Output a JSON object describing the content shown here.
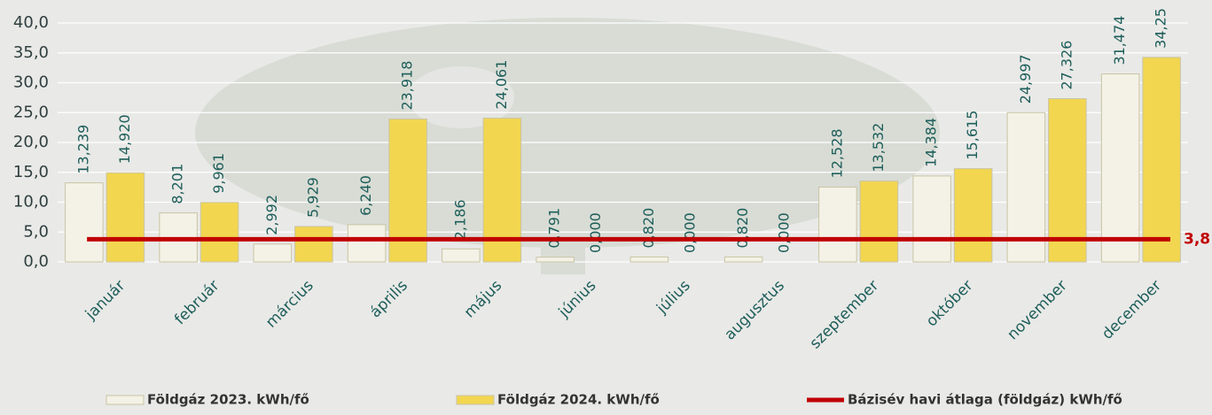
{
  "chart_data": {
    "type": "bar",
    "categories": [
      "január",
      "február",
      "március",
      "április",
      "május",
      "június",
      "július",
      "augusztus",
      "szeptember",
      "október",
      "november",
      "december"
    ],
    "series": [
      {
        "name": "Földgáz 2023. kWh/fő",
        "color": "#f4f2e6",
        "values": [
          13.239,
          8.201,
          2.992,
          6.24,
          2.186,
          0.791,
          0.82,
          0.82,
          12.528,
          14.384,
          24.997,
          31.474
        ],
        "value_labels": [
          "13,239",
          "8,201",
          "2,992",
          "6,240",
          "2,186",
          "0,791",
          "0,820",
          "0,820",
          "12,528",
          "14,384",
          "24,997",
          "31,474"
        ]
      },
      {
        "name": "Földgáz 2024. kWh/fő",
        "color": "#f2d650",
        "values": [
          14.92,
          9.961,
          5.929,
          23.918,
          24.061,
          0,
          0,
          0,
          13.532,
          15.615,
          27.326,
          34.25
        ],
        "value_labels": [
          "14,920",
          "9,961",
          "5,929",
          "23,918",
          "24,061",
          "0,000",
          "0,000",
          "0,000",
          "13,532",
          "15,615",
          "27,326",
          "34,25"
        ]
      }
    ],
    "baseline": {
      "name": "Bázisév havi átlaga (földgáz) kWh/fő",
      "color": "#c00000",
      "value": 3.8,
      "value_label": "3,8"
    },
    "ylim": [
      0,
      40
    ],
    "yticks": [
      {
        "value": 0,
        "label": "0,0"
      },
      {
        "value": 5,
        "label": "5,0"
      },
      {
        "value": 10,
        "label": "10,0"
      },
      {
        "value": 15,
        "label": "15,0"
      },
      {
        "value": 20,
        "label": "20,0"
      },
      {
        "value": 25,
        "label": "25,0"
      },
      {
        "value": 30,
        "label": "30,0"
      },
      {
        "value": 35,
        "label": "35,0"
      },
      {
        "value": 40,
        "label": "40,0"
      }
    ],
    "grid": true
  }
}
